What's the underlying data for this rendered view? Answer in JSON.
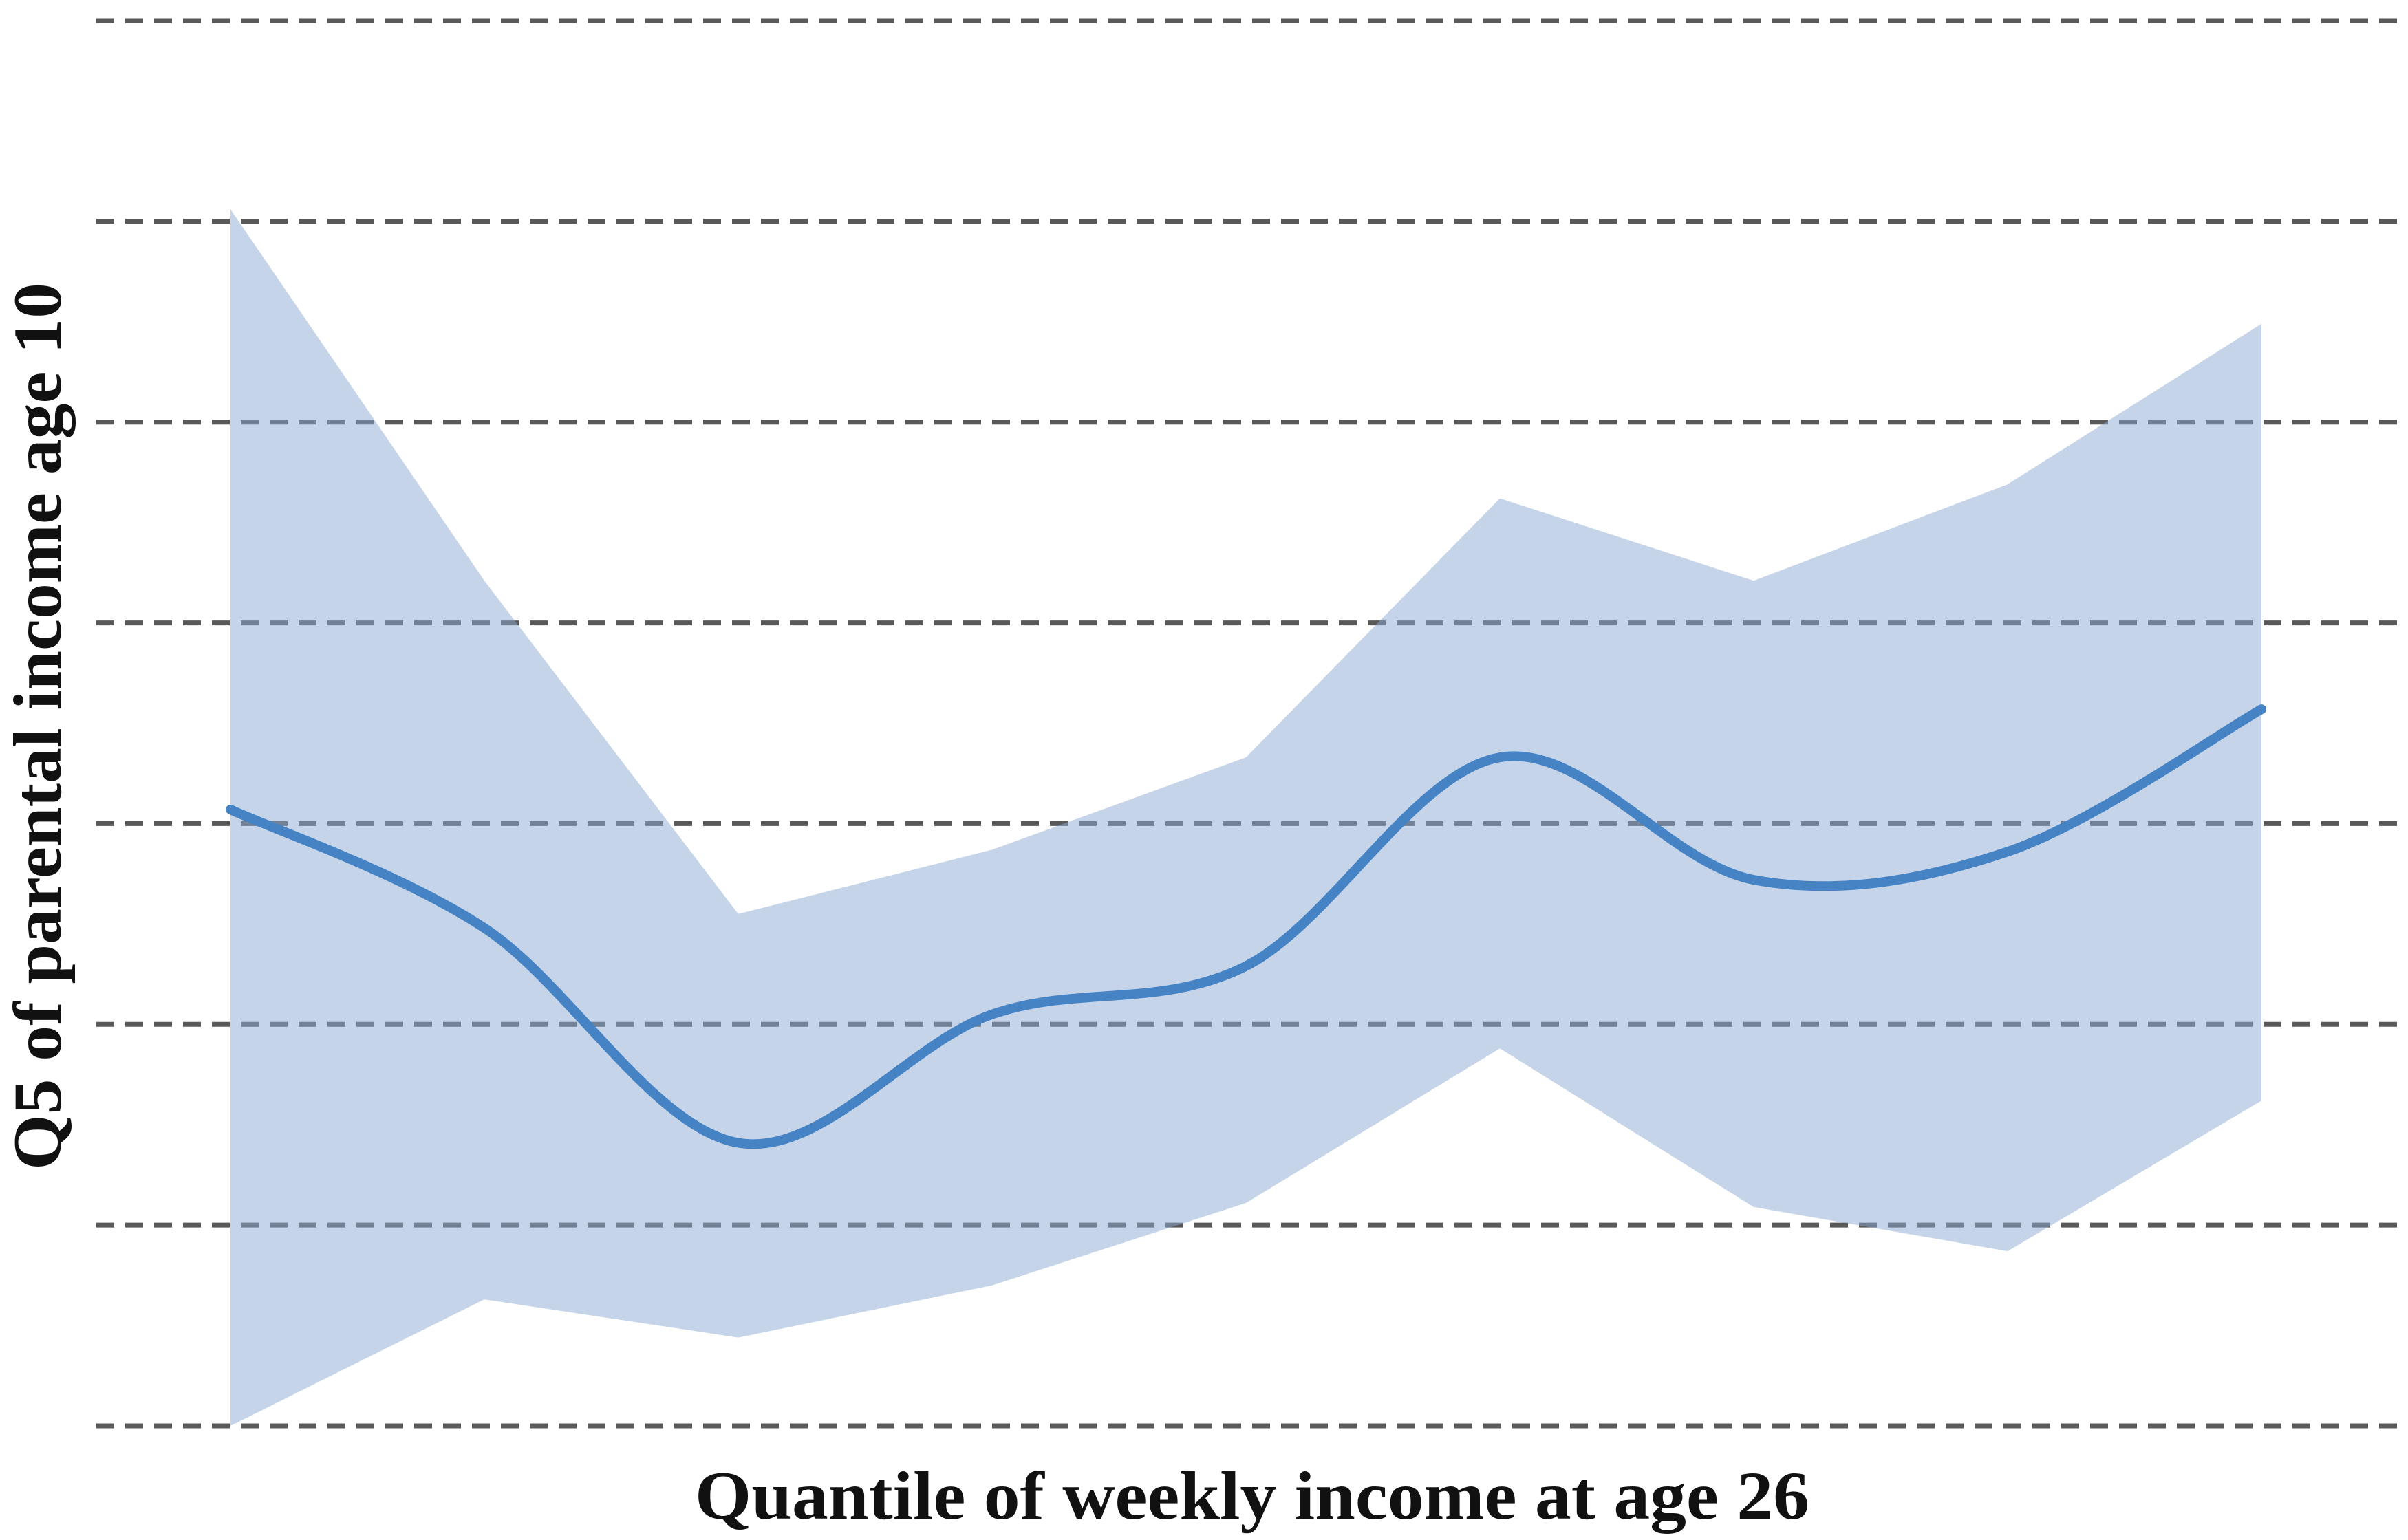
{
  "figure": {
    "background": "#ffffff",
    "description": "Smoothed quantile regression line with shaded confidence band"
  },
  "colors": {
    "band": "#8caad2",
    "band_opacity": 0.5,
    "line": "#4583c5",
    "gridline": "#3d3d3d",
    "text": "#111111"
  },
  "chart_data": {
    "type": "line",
    "title": "",
    "xlabel": "Quantile of weekly income at age 26",
    "ylabel": "Q5 of parental income age 10",
    "x": [
      1,
      2,
      3,
      4,
      5,
      6,
      7,
      8,
      9
    ],
    "x_note": "9 evenly spaced quantile positions; axis ticks are unlabeled",
    "y_note": "vertical axis unlabeled; values given in gridline units above the bottom dashed gridline (8 dashed gridlines, 1 unit apart)",
    "ylim": [
      0,
      7
    ],
    "grid": {
      "orientation": "horizontal",
      "style": "dashed",
      "count": 8
    },
    "legend": "none",
    "series": [
      {
        "name": "estimate",
        "role": "line",
        "values": [
          3.07,
          2.48,
          1.41,
          2.05,
          2.29,
          3.33,
          2.72,
          2.86,
          3.57
        ]
      },
      {
        "name": "ci_upper",
        "role": "band-upper",
        "values": [
          6.06,
          4.21,
          2.55,
          2.87,
          3.33,
          4.62,
          4.21,
          4.69,
          5.49
        ]
      },
      {
        "name": "ci_lower",
        "role": "band-lower",
        "values": [
          0.0,
          0.63,
          0.44,
          0.7,
          1.11,
          1.88,
          1.09,
          0.87,
          1.62
        ]
      }
    ]
  }
}
